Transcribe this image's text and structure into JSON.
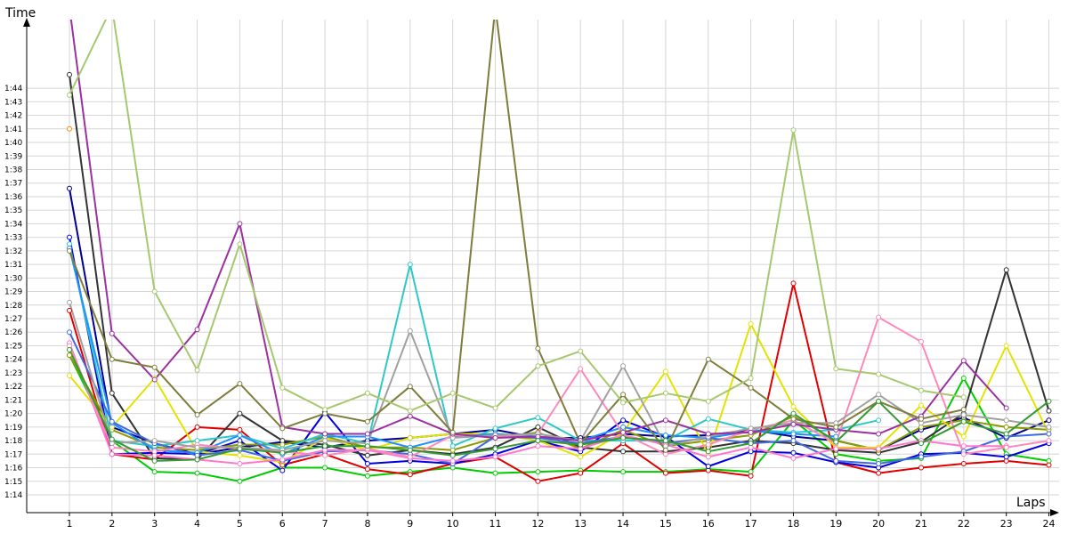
{
  "chart_data": {
    "type": "line",
    "ylabel": "Time",
    "xlabel": "Laps",
    "x": [
      1,
      2,
      3,
      4,
      5,
      6,
      7,
      8,
      9,
      10,
      11,
      12,
      13,
      14,
      15,
      16,
      17,
      18,
      19,
      20,
      21,
      22,
      23,
      24
    ],
    "ylim": [
      "1:13",
      "1:46"
    ],
    "ylim_seconds": [
      73,
      106
    ],
    "y_ticks": [
      "1:14",
      "1:15",
      "1:16",
      "1:17",
      "1:18",
      "1:19",
      "1:20",
      "1:21",
      "1:22",
      "1:23",
      "1:24",
      "1:25",
      "1:26",
      "1:27",
      "1:28",
      "1:29",
      "1:30",
      "1:31",
      "1:32",
      "1:33",
      "1:34",
      "1:35",
      "1:36",
      "1:37",
      "1:38",
      "1:39",
      "1:40",
      "1:41",
      "1:42",
      "1:43",
      "1:44"
    ],
    "x_ticks": [
      "1",
      "2",
      "3",
      "4",
      "5",
      "6",
      "7",
      "8",
      "9",
      "10",
      "11",
      "12",
      "13",
      "14",
      "15",
      "16",
      "17",
      "18",
      "19",
      "20",
      "21",
      "22",
      "23",
      "24"
    ],
    "grid": true,
    "legend": "none",
    "value_unit": "seconds",
    "series": [
      {
        "color": "#00cc00",
        "values": [
          84.3,
          78.0,
          75.7,
          75.6,
          75.0,
          76.0,
          76.0,
          75.4,
          75.7,
          76.0,
          75.6,
          75.7,
          75.8,
          75.7,
          75.7,
          75.9,
          75.7,
          79.5,
          77.0,
          76.5,
          76.7,
          82.6,
          77.0,
          76.5
        ]
      },
      {
        "color": "#e00000",
        "values": [
          87.6,
          77.0,
          76.6,
          79.0,
          78.8,
          76.2,
          77.0,
          75.9,
          75.5,
          76.3,
          76.8,
          75.0,
          75.6,
          77.8,
          75.6,
          75.8,
          75.4,
          89.6,
          76.4,
          75.6,
          76.0,
          76.3,
          76.5,
          76.2
        ]
      },
      {
        "color": "#0000dd",
        "values": [
          93.0,
          77.0,
          77.1,
          77.0,
          78.0,
          75.8,
          80.1,
          76.3,
          76.5,
          76.3,
          77.0,
          78.0,
          77.2,
          79.5,
          78.3,
          76.1,
          77.2,
          77.1,
          76.4,
          76.0,
          77.0,
          77.1,
          76.8,
          77.8
        ]
      },
      {
        "color": "#00008b",
        "values": [
          96.6,
          79.0,
          77.8,
          77.0,
          77.5,
          77.9,
          77.5,
          78.0,
          78.2,
          78.5,
          78.8,
          78.2,
          78.2,
          78.5,
          78.3,
          78.4,
          78.8,
          78.3,
          78.0,
          77.3,
          78.8,
          79.7,
          78.2,
          79.5
        ]
      },
      {
        "color": "#333333",
        "values": [
          105.0,
          81.5,
          76.7,
          76.6,
          80.0,
          78.0,
          77.7,
          76.9,
          77.3,
          77.0,
          77.5,
          79.0,
          77.5,
          77.2,
          77.2,
          77.5,
          78.0,
          77.8,
          77.3,
          77.1,
          77.9,
          80.0,
          90.6,
          80.2
        ]
      },
      {
        "color": "#8b9a00",
        "values": [
          84.3,
          78.8,
          77.5,
          77.3,
          77.7,
          77.7,
          78.3,
          77.5,
          77.5,
          77.3,
          78.2,
          78.6,
          77.4,
          78.8,
          77.6,
          78.0,
          78.4,
          79.8,
          78.0,
          77.3,
          79.0,
          79.5,
          79.0,
          78.8
        ]
      },
      {
        "color": "#e3e300",
        "values": [
          82.8,
          79.0,
          82.6,
          77.2,
          76.9,
          76.4,
          78.2,
          77.3,
          78.2,
          78.5,
          78.5,
          78.0,
          76.8,
          78.6,
          83.1,
          77.0,
          86.6,
          80.5,
          77.5,
          77.5,
          80.6,
          78.3,
          85.0,
          78.5
        ]
      },
      {
        "color": "#2fc8c8",
        "values": [
          92.5,
          78.0,
          77.6,
          78.0,
          78.4,
          77.4,
          78.5,
          77.8,
          91.0,
          77.6,
          78.9,
          79.7,
          78.0,
          78.0,
          78.0,
          79.6,
          78.8,
          78.6,
          78.8,
          79.5,
          null,
          null,
          null,
          null
        ]
      },
      {
        "color": "#1e90ff",
        "values": [
          92.2,
          79.3,
          77.3,
          77.1,
          78.4,
          77.0,
          78.3,
          78.3,
          77.5,
          78.3,
          78.5,
          78.3,
          78.0,
          79.0,
          78.4,
          78.2,
          78.7,
          78.5,
          78.3,
          null,
          null,
          null,
          null,
          null
        ]
      },
      {
        "color": "#4169e1",
        "values": [
          86.0,
          79.4,
          77.8,
          76.9,
          77.3,
          76.5,
          77.2,
          77.3,
          77.0,
          76.3,
          78.3,
          78.2,
          77.8,
          78.3,
          77.8,
          78.2,
          77.8,
          78.0,
          76.5,
          76.3,
          76.8,
          77.2,
          78.3,
          78.5
        ]
      },
      {
        "color": "#ff77cc",
        "values": [
          85.2,
          77.0,
          76.9,
          76.6,
          76.3,
          76.6,
          77.3,
          77.3,
          76.7,
          76.5,
          76.8,
          77.6,
          77.4,
          78.4,
          77.7,
          76.8,
          77.5,
          76.7,
          77.4,
          77.4,
          78.0,
          77.6,
          77.6,
          null
        ]
      },
      {
        "color": "#ff88bb",
        "values": [
          85.0,
          77.5,
          77.2,
          77.7,
          77.4,
          77.2,
          76.9,
          77.4,
          76.8,
          78.4,
          78.3,
          78.5,
          83.3,
          78.5,
          77.0,
          77.7,
          78.8,
          79.5,
          77.8,
          87.1,
          85.3,
          77.0,
          77.5,
          78.0
        ]
      },
      {
        "color": "#a0a0a0",
        "values": [
          88.2,
          77.8,
          78.0,
          77.5,
          77.5,
          77.3,
          78.0,
          77.8,
          86.1,
          78.2,
          78.4,
          78.5,
          78.0,
          83.5,
          77.6,
          78.3,
          78.9,
          79.3,
          79.3,
          81.4,
          79.3,
          79.9,
          79.5,
          79.0
        ]
      },
      {
        "color": "#9b30a0",
        "values": [
          110.0,
          85.9,
          82.5,
          86.2,
          94.0,
          79.0,
          78.5,
          78.5,
          79.8,
          78.5,
          78.2,
          78.3,
          78.0,
          78.6,
          79.5,
          78.5,
          78.6,
          79.2,
          78.8,
          78.5,
          79.8,
          83.9,
          80.4,
          null
        ]
      },
      {
        "color": "#7d7d3c",
        "values": [
          92.0,
          84.0,
          83.4,
          79.9,
          82.2,
          78.9,
          80.0,
          79.4,
          82.0,
          78.6,
          110.0,
          84.8,
          77.8,
          81.4,
          77.3,
          84.0,
          81.9,
          79.6,
          79.0,
          80.9,
          79.6,
          80.3,
          null,
          null
        ]
      },
      {
        "color": "#a6c86e",
        "values": [
          103.5,
          110.0,
          89.0,
          83.2,
          92.5,
          81.9,
          80.3,
          81.5,
          80.2,
          81.5,
          80.4,
          83.5,
          84.6,
          80.8,
          81.5,
          80.9,
          82.6,
          100.9,
          83.3,
          82.9,
          81.7,
          81.2,
          null,
          null
        ]
      },
      {
        "color": "#339933",
        "values": [
          84.7,
          78.1,
          76.5,
          76.6,
          77.4,
          77.1,
          77.6,
          77.6,
          77.3,
          76.9,
          77.4,
          78.0,
          77.7,
          78.2,
          78.0,
          77.2,
          77.8,
          80.0,
          77.9,
          80.9,
          77.8,
          79.4,
          78.5,
          80.9
        ]
      }
    ],
    "extra_points": [
      {
        "x": 1,
        "value": 101.0,
        "color": "#ff8800"
      }
    ]
  }
}
